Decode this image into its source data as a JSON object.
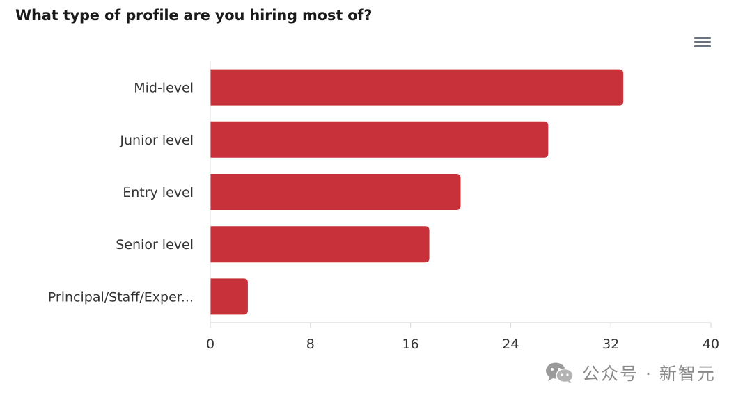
{
  "chart_data": {
    "type": "bar",
    "orientation": "horizontal",
    "title": "What type of profile are you hiring most of?",
    "categories": [
      "Mid-level",
      "Junior level",
      "Entry level",
      "Senior level",
      "Principal/Staff/Exper..."
    ],
    "values": [
      33,
      27,
      20,
      17.5,
      3
    ],
    "xlim": [
      0,
      40
    ],
    "xticks": [
      "0",
      "8",
      "16",
      "24",
      "32",
      "40"
    ],
    "grid": false,
    "bar_color": "#c8313a"
  },
  "menu": {
    "icon": "hamburger-menu-icon"
  },
  "watermark": {
    "text": "公众号 · 新智元",
    "icon": "wechat-icon",
    "color": "#8a8a8a"
  }
}
